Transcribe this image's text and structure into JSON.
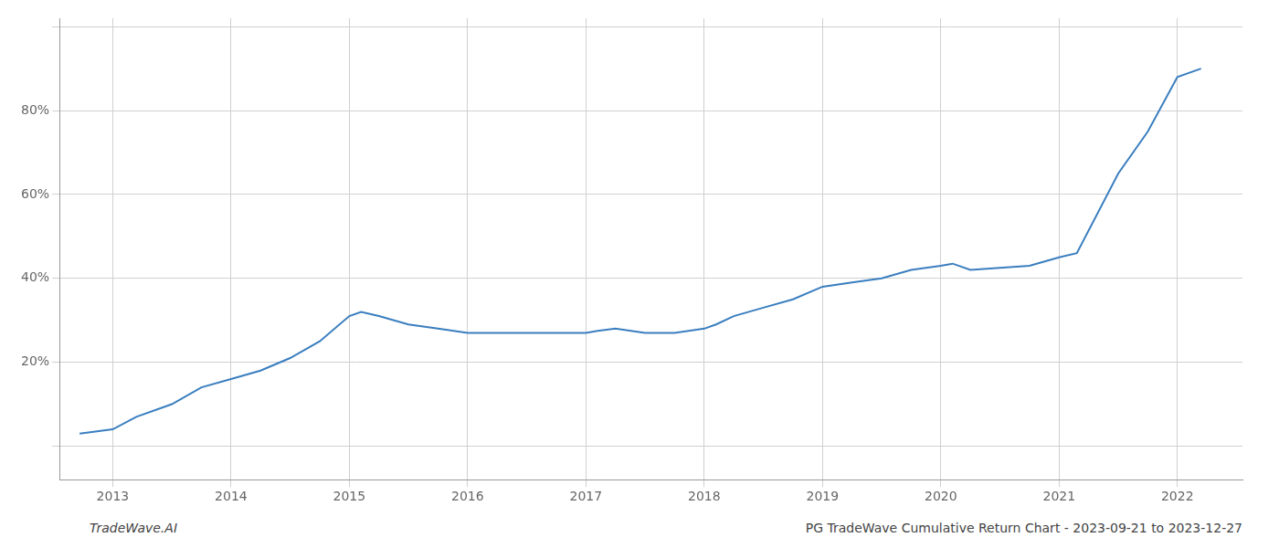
{
  "chart_data": {
    "type": "line",
    "x": [
      2012.72,
      2013.0,
      2013.2,
      2013.5,
      2013.75,
      2014.0,
      2014.25,
      2014.5,
      2014.75,
      2015.0,
      2015.1,
      2015.25,
      2015.5,
      2015.75,
      2016.0,
      2016.25,
      2016.5,
      2016.75,
      2017.0,
      2017.1,
      2017.25,
      2017.5,
      2017.75,
      2018.0,
      2018.1,
      2018.25,
      2018.5,
      2018.75,
      2019.0,
      2019.25,
      2019.5,
      2019.75,
      2020.0,
      2020.1,
      2020.25,
      2020.5,
      2020.75,
      2021.0,
      2021.15,
      2021.5,
      2021.75,
      2022.0,
      2022.2
    ],
    "values": [
      3,
      4,
      7,
      10,
      14,
      16,
      18,
      21,
      25,
      31,
      32,
      31,
      29,
      28,
      27,
      27,
      27,
      27,
      27,
      27.5,
      28,
      27,
      27,
      28,
      29,
      31,
      33,
      35,
      38,
      39,
      40,
      42,
      43,
      43.5,
      42,
      42.5,
      43,
      45,
      46,
      65,
      75,
      88,
      90
    ],
    "color": "#3a7ebf",
    "xlim": [
      2012.55,
      2022.55
    ],
    "xticks": [
      2013,
      2014,
      2015,
      2016,
      2017,
      2018,
      2019,
      2020,
      2021,
      2022
    ],
    "ylim": [
      -8,
      102
    ],
    "yticks": [
      {
        "value": 0,
        "label": null
      },
      {
        "value": 20,
        "label": "20%"
      },
      {
        "value": 40,
        "label": "40%"
      },
      {
        "value": 60,
        "label": "60%"
      },
      {
        "value": 80,
        "label": "80%"
      },
      {
        "value": 100,
        "label": null
      }
    ],
    "grid": true,
    "annotations": [
      "TradeWave.AI",
      "PG TradeWave Cumulative Return Chart - 2023-09-21 to 2023-12-27"
    ]
  }
}
